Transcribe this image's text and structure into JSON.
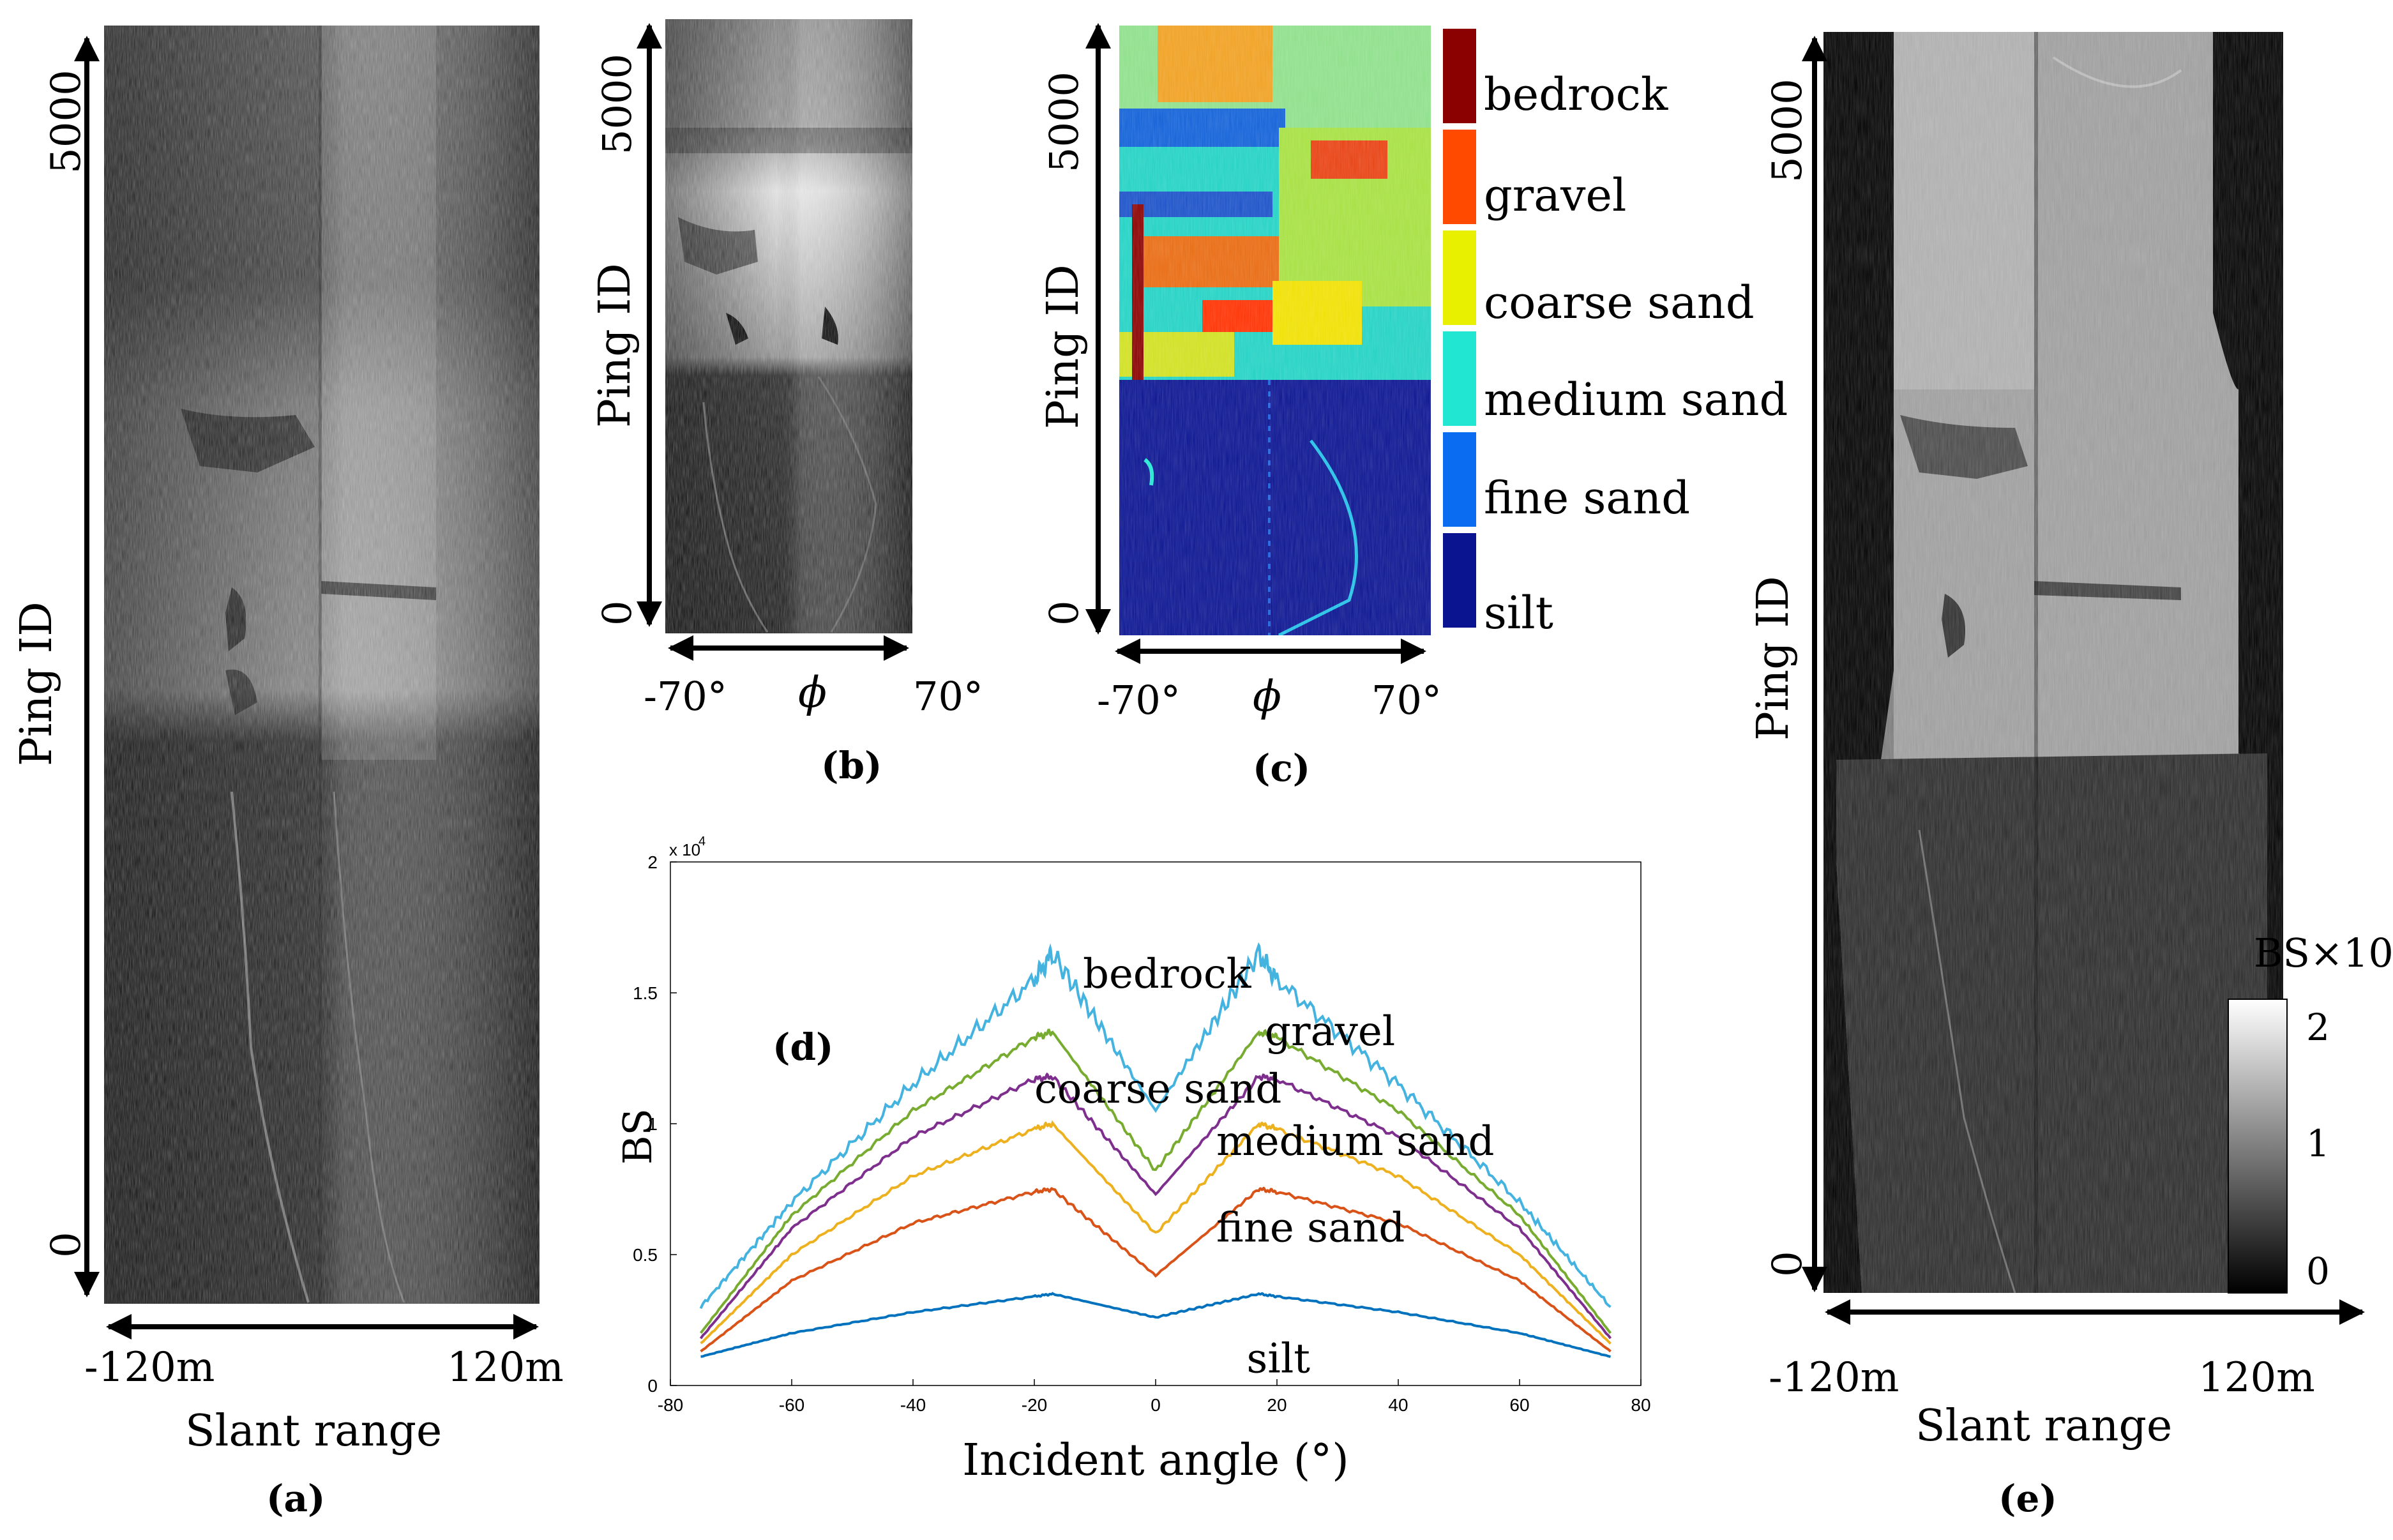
{
  "panels": {
    "a": {
      "label": "(a)",
      "y_label": "Ping ID",
      "y_ticks": [
        "5000",
        "0"
      ],
      "x_ticks": [
        "-120m",
        "120m"
      ],
      "x_label": "Slant range"
    },
    "b": {
      "label": "(b)",
      "y_label": "Ping ID",
      "y_ticks": [
        "5000",
        "0"
      ],
      "x_ticks": [
        "-70°",
        "70°"
      ],
      "x_symbol": "ϕ"
    },
    "c": {
      "label": "(c)",
      "y_label": "Ping ID",
      "y_ticks": [
        "5000",
        "0"
      ],
      "x_ticks": [
        "-70°",
        "70°"
      ],
      "x_symbol": "ϕ",
      "legend": [
        {
          "label": "bedrock",
          "color": "#8b0000"
        },
        {
          "label": "gravel",
          "color": "#ff4a00"
        },
        {
          "label": "coarse sand",
          "color": "#e8f000"
        },
        {
          "label": "medium sand",
          "color": "#21e6d2"
        },
        {
          "label": "fine sand",
          "color": "#0a6cf0"
        },
        {
          "label": "silt",
          "color": "#0a1490"
        }
      ]
    },
    "d": {
      "label": "(d)"
    },
    "e": {
      "label": "(e)",
      "y_label": "Ping ID",
      "y_ticks": [
        "5000",
        "0"
      ],
      "x_ticks": [
        "-120m",
        "120m"
      ],
      "x_label": "Slant range",
      "colorbar_title": "BS×10",
      "colorbar_ticks": [
        "2",
        "1",
        "0"
      ]
    }
  },
  "chart_data": {
    "type": "line",
    "panel_label": "(d)",
    "title": "",
    "xlabel": "Incident angle (°)",
    "ylabel": "BS",
    "y_exponent": "x 10",
    "y_exponent_power": "4",
    "xlim": [
      -80,
      80
    ],
    "ylim": [
      0,
      20000
    ],
    "xticks": [
      "-80",
      "-60",
      "-40",
      "-20",
      "0",
      "20",
      "40",
      "60",
      "80"
    ],
    "yticks": [
      "0",
      "0.5",
      "1",
      "1.5",
      "2"
    ],
    "x": [
      -75,
      -60,
      -40,
      -20,
      -17,
      0,
      17,
      20,
      40,
      60,
      75
    ],
    "series": [
      {
        "name": "bedrock",
        "color": "#45b3e0",
        "values": [
          3000,
          7000,
          11500,
          15500,
          16500,
          10500,
          16500,
          15500,
          11500,
          7000,
          3000
        ]
      },
      {
        "name": "gravel",
        "color": "#77ac30",
        "values": [
          2000,
          6500,
          10500,
          13300,
          13500,
          8200,
          13500,
          13300,
          10500,
          6500,
          2000
        ]
      },
      {
        "name": "coarse sand",
        "color": "#7e2f8e",
        "values": [
          1800,
          6000,
          9500,
          11700,
          11800,
          7300,
          11800,
          11700,
          9500,
          6000,
          1800
        ]
      },
      {
        "name": "medium sand",
        "color": "#edb120",
        "values": [
          1600,
          5000,
          8000,
          9800,
          10000,
          5800,
          10000,
          9800,
          8000,
          5000,
          1600
        ]
      },
      {
        "name": "fine sand",
        "color": "#d95319",
        "values": [
          1300,
          4000,
          6200,
          7400,
          7500,
          4200,
          7500,
          7400,
          6200,
          4000,
          1300
        ]
      },
      {
        "name": "silt",
        "color": "#0072bd",
        "values": [
          1100,
          2000,
          2800,
          3400,
          3500,
          2600,
          3500,
          3400,
          2800,
          2000,
          1100
        ]
      }
    ],
    "annotations": [
      "bedrock",
      "gravel",
      "coarse sand",
      "medium sand",
      "fine sand",
      "silt"
    ]
  }
}
